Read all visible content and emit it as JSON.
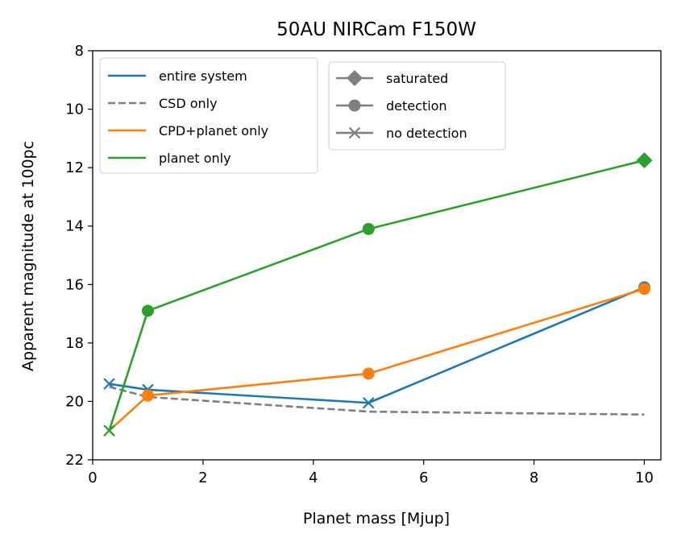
{
  "chart_data": {
    "type": "line",
    "title": "50AU NIRCam F150W",
    "xlabel": "Planet mass [Mjup]",
    "ylabel": "Apparent magnitude at 100pc",
    "xlim": [
      0,
      10.3
    ],
    "ylim": [
      22,
      8
    ],
    "y_inverted": true,
    "grid": false,
    "x_ticks": [
      0,
      2,
      4,
      6,
      8,
      10
    ],
    "y_ticks": [
      8,
      10,
      12,
      14,
      16,
      18,
      20,
      22
    ],
    "series": [
      {
        "name": "entire system",
        "color": "#1f77b4",
        "linestyle": "solid",
        "x": [
          0.3,
          1,
          5,
          10
        ],
        "y": [
          19.4,
          19.6,
          20.05,
          16.1
        ],
        "markers": [
          "no detection",
          "no detection",
          "no detection",
          "detection"
        ]
      },
      {
        "name": "CSD only",
        "color": "#7f7f7f",
        "linestyle": "dashed",
        "x": [
          0.3,
          1,
          5,
          10
        ],
        "y": [
          19.5,
          19.85,
          20.35,
          20.45
        ],
        "markers": [
          "none",
          "none",
          "none",
          "none"
        ]
      },
      {
        "name": "CPD+planet only",
        "color": "#ff7f0e",
        "linestyle": "solid",
        "x": [
          0.3,
          1,
          5,
          10
        ],
        "y": [
          21.0,
          19.8,
          19.05,
          16.15
        ],
        "markers": [
          "no detection",
          "detection",
          "detection",
          "detection"
        ]
      },
      {
        "name": "planet only",
        "color": "#2ca02c",
        "linestyle": "solid",
        "x": [
          0.3,
          1,
          5,
          10
        ],
        "y": [
          21.0,
          16.9,
          14.1,
          11.75
        ],
        "markers": [
          "no detection",
          "detection",
          "detection",
          "saturated"
        ]
      }
    ],
    "legend_lines": {
      "placement": "top-left",
      "entries": [
        "entire system",
        "CSD only",
        "CPD+planet only",
        "planet only"
      ]
    },
    "legend_markers": {
      "placement": "top-center",
      "color": "#7f7f7f",
      "entries": [
        {
          "label": "saturated",
          "marker": "diamond"
        },
        {
          "label": "detection",
          "marker": "circle"
        },
        {
          "label": "no detection",
          "marker": "x"
        }
      ]
    }
  }
}
